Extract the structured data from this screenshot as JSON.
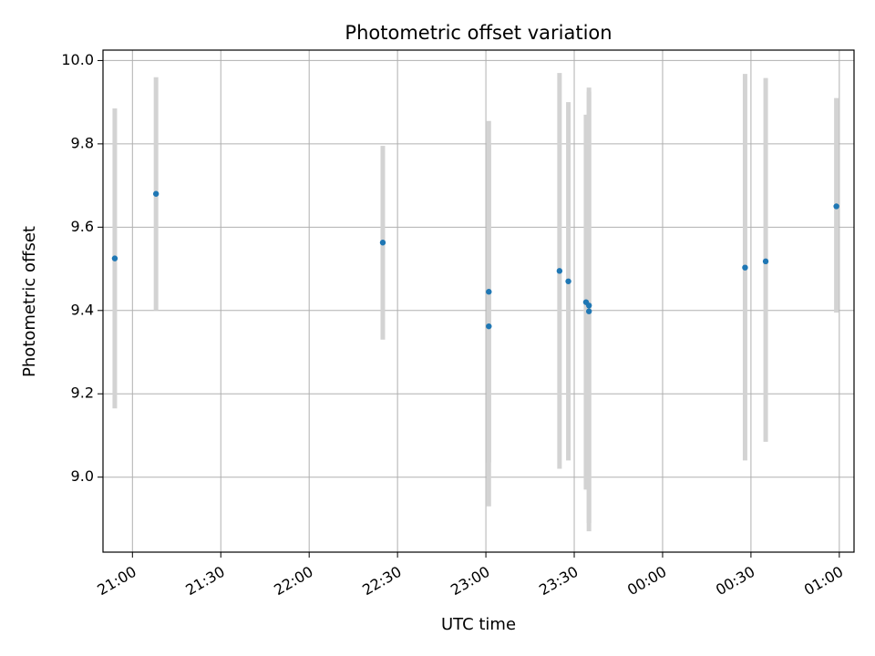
{
  "chart_data": {
    "type": "scatter",
    "title": "Photometric offset variation",
    "xlabel": "UTC time",
    "ylabel": "Photometric offset",
    "grid": true,
    "legend": "none",
    "xlim": [
      "20:50",
      "01:05"
    ],
    "ylim": [
      8.82,
      10.025
    ],
    "x_ticks": [
      "21:00",
      "21:30",
      "22:00",
      "22:30",
      "23:00",
      "23:30",
      "00:00",
      "00:30",
      "01:00"
    ],
    "y_ticks": [
      "9.0",
      "9.2",
      "9.4",
      "9.6",
      "9.8",
      "10.0"
    ],
    "series": [
      {
        "marker_color": "#1f77b4",
        "errorbar_color": "#d3d3d3",
        "points": [
          {
            "x": "20:54",
            "y": 9.525,
            "yerr_low": 9.165,
            "yerr_high": 9.885
          },
          {
            "x": "21:08",
            "y": 9.68,
            "yerr_low": 9.4,
            "yerr_high": 9.96
          },
          {
            "x": "22:25",
            "y": 9.563,
            "yerr_low": 9.33,
            "yerr_high": 9.795
          },
          {
            "x": "23:01",
            "y": 9.362,
            "yerr_low": 8.93,
            "yerr_high": 9.8
          },
          {
            "x": "23:01",
            "y": 9.445,
            "yerr_low": 9.035,
            "yerr_high": 9.855
          },
          {
            "x": "23:25",
            "y": 9.495,
            "yerr_low": 9.02,
            "yerr_high": 9.97
          },
          {
            "x": "23:28",
            "y": 9.47,
            "yerr_low": 9.04,
            "yerr_high": 9.9
          },
          {
            "x": "23:34",
            "y": 9.42,
            "yerr_low": 8.97,
            "yerr_high": 9.87
          },
          {
            "x": "23:35",
            "y": 9.398,
            "yerr_low": 8.87,
            "yerr_high": 9.925
          },
          {
            "x": "23:35",
            "y": 9.412,
            "yerr_low": 8.89,
            "yerr_high": 9.935
          },
          {
            "x": "00:28",
            "y": 9.503,
            "yerr_low": 9.04,
            "yerr_high": 9.968
          },
          {
            "x": "00:35",
            "y": 9.518,
            "yerr_low": 9.085,
            "yerr_high": 9.958
          },
          {
            "x": "00:59",
            "y": 9.65,
            "yerr_low": 9.395,
            "yerr_high": 9.91
          }
        ]
      }
    ]
  }
}
